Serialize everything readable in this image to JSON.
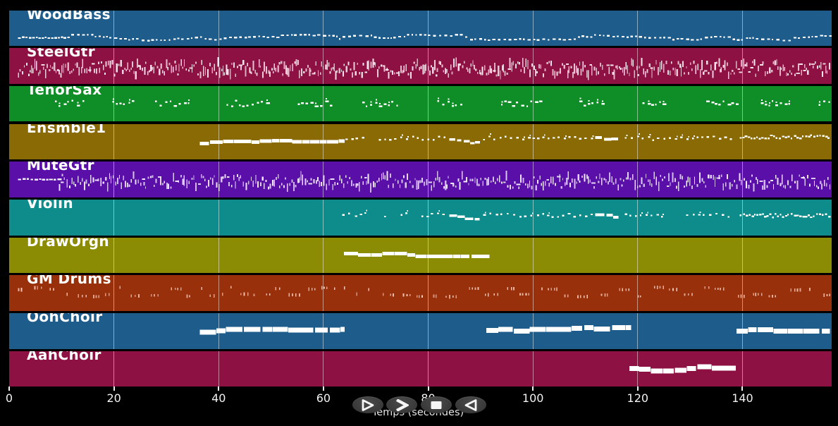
{
  "axis": {
    "label": "Temps (secondes)",
    "ticks": [
      0,
      20,
      40,
      60,
      80,
      100,
      120,
      140
    ],
    "t_max": 157,
    "tick_color": "#f2f2f2",
    "grid_color": "rgba(255,255,255,0.48)"
  },
  "transport": {
    "buttons": [
      {
        "name": "play",
        "icon": "play-icon"
      },
      {
        "name": "forward",
        "icon": "forward-icon"
      },
      {
        "name": "stop",
        "icon": "stop-icon"
      },
      {
        "name": "rewind",
        "icon": "rewind-icon"
      }
    ],
    "button_color": "#3e3e3e",
    "icon_color": "#f5f5f5"
  },
  "tracks": [
    {
      "id": "woodbass",
      "label": "WoodBass",
      "color": "#1E5C8C",
      "note_color": "#ffffff",
      "segments": [
        {
          "type": "bass",
          "t0": 1.7,
          "t1": 157,
          "pitch": 0.76
        }
      ]
    },
    {
      "id": "steelgtr",
      "label": "SteelGtr",
      "color": "#8E1144",
      "note_color": "#fbe9ef",
      "segments": [
        {
          "type": "noise",
          "t0": 1.7,
          "t1": 157,
          "pitch": 0.58,
          "spread": 0.42,
          "density": 1.0
        }
      ]
    },
    {
      "id": "tenorsax",
      "label": "TenorSax",
      "color": "#0F8D26",
      "note_color": "#ffffff",
      "segments": [
        {
          "type": "clusters",
          "t0": 8.7,
          "t1": 157,
          "pitch": 0.49
        }
      ]
    },
    {
      "id": "ensmble1",
      "label": "Ensmble1",
      "color": "#8A6A04",
      "note_color": "#ffffff",
      "segments": [
        {
          "type": "dashline",
          "t0": 36.4,
          "t1": 63.8,
          "pitch": 0.54,
          "h": 5,
          "dmin": 8,
          "dmax": 20
        },
        {
          "type": "dots",
          "t0": 64.2,
          "t1": 83.8,
          "pitch": 0.4
        },
        {
          "type": "dashline",
          "t0": 84.0,
          "t1": 89.6,
          "pitch": 0.43,
          "h": 3.2,
          "drift": 5,
          "dmin": 5,
          "dmax": 12
        },
        {
          "type": "dots",
          "t0": 90.5,
          "t1": 111.6,
          "pitch": 0.4
        },
        {
          "type": "dashline",
          "t0": 111.9,
          "t1": 116.4,
          "pitch": 0.38,
          "h": 4,
          "drift": 2,
          "dmin": 6,
          "dmax": 14
        },
        {
          "type": "dots",
          "t0": 117.5,
          "t1": 138.9,
          "pitch": 0.4
        },
        {
          "type": "run",
          "t0": 139.5,
          "t1": 157,
          "pitch": 0.36
        }
      ]
    },
    {
      "id": "mutegtr",
      "label": "MuteGtr",
      "color": "#5A10A8",
      "note_color": "#f3ecfc",
      "segments": [
        {
          "type": "dashflat",
          "t0": 1.7,
          "t1": 9.5,
          "pitch": 0.5
        },
        {
          "type": "noise",
          "t0": 9.5,
          "t1": 157,
          "pitch": 0.56,
          "spread": 0.4,
          "density": 0.85
        }
      ]
    },
    {
      "id": "violin",
      "label": "Violin",
      "color": "#0E8C8C",
      "note_color": "#ffffff",
      "segments": [
        {
          "type": "dots",
          "t0": 63.6,
          "t1": 83.8,
          "pitch": 0.43
        },
        {
          "type": "dashline",
          "t0": 84.0,
          "t1": 89.6,
          "pitch": 0.45,
          "h": 3.5,
          "drift": 5,
          "dmin": 5,
          "dmax": 12
        },
        {
          "type": "dots",
          "t0": 90.5,
          "t1": 111.6,
          "pitch": 0.44
        },
        {
          "type": "dashline",
          "t0": 111.9,
          "t1": 116.4,
          "pitch": 0.42,
          "h": 4,
          "drift": 2,
          "dmin": 6,
          "dmax": 14
        },
        {
          "type": "dots",
          "t0": 117.5,
          "t1": 138.9,
          "pitch": 0.44
        },
        {
          "type": "run",
          "t0": 139.5,
          "t1": 157,
          "pitch": 0.45
        }
      ]
    },
    {
      "id": "draworgn",
      "label": "DrawOrgn",
      "color": "#8B8B04",
      "note_color": "#ffffff",
      "segments": [
        {
          "type": "dashline",
          "t0": 63.9,
          "t1": 91.4,
          "pitch": 0.44,
          "h": 5,
          "dmin": 10,
          "dmax": 22
        }
      ]
    },
    {
      "id": "gmdrums",
      "label": "GM Drums",
      "color": "#97300B",
      "note_color": "#ffd2c2",
      "segments": [
        {
          "type": "perc",
          "t0": 1.7,
          "t1": 157,
          "pitch": 0.49
        }
      ]
    },
    {
      "id": "oohchoir",
      "label": "OohChoir",
      "color": "#1E5C8C",
      "note_color": "#ffffff",
      "segments": [
        {
          "type": "dashline",
          "t0": 36.4,
          "t1": 63.8,
          "pitch": 0.53,
          "h": 7,
          "dmin": 12,
          "dmax": 24
        },
        {
          "type": "dashline",
          "t0": 91.1,
          "t1": 118.5,
          "pitch": 0.48,
          "h": 7,
          "dmin": 12,
          "dmax": 24
        },
        {
          "type": "dashline",
          "t0": 138.9,
          "t1": 156.4,
          "pitch": 0.5,
          "h": 7,
          "dmin": 12,
          "dmax": 24
        }
      ]
    },
    {
      "id": "aahchoir",
      "label": "AahChoir",
      "color": "#8E1144",
      "note_color": "#ffffff",
      "segments": [
        {
          "type": "dashline",
          "t0": 118.4,
          "t1": 139.1,
          "pitch": 0.48,
          "h": 7,
          "dmin": 12,
          "dmax": 24
        }
      ]
    }
  ]
}
